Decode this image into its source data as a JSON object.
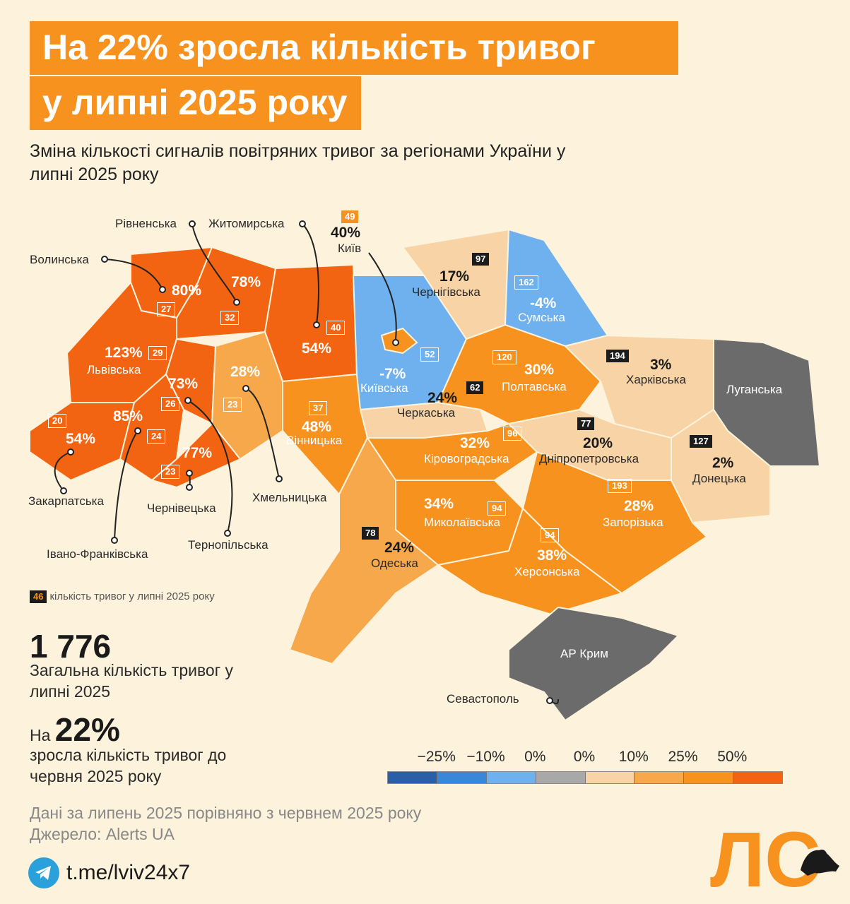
{
  "title": {
    "line1": "На 22% зросла кількість тривог",
    "line2": "у липні 2025 року"
  },
  "subtitle": "Зміна кількості сигналів повітряних тривог за регіонами України у липні 2025 року",
  "colors": {
    "orange_dark": "#f26411",
    "orange": "#f7921e",
    "orange_mid": "#f6a84a",
    "peach": "#f8d3a6",
    "blue_light": "#6fb1ee",
    "blue": "#3a86d8",
    "blue_dark": "#2a5ea8",
    "grey": "#6b6b6b",
    "accent": "#f7921e"
  },
  "regions": [
    {
      "name": "Волинська",
      "pct": "80%",
      "count": "27"
    },
    {
      "name": "Рівненська",
      "pct": "78%",
      "count": "32"
    },
    {
      "name": "Житомирська",
      "pct": "54%",
      "count": "40"
    },
    {
      "name": "Київ",
      "pct": "40%",
      "count": "49"
    },
    {
      "name": "Чернігівська",
      "pct": "17%",
      "count": "97"
    },
    {
      "name": "Сумська",
      "pct": "-4%",
      "count": "162"
    },
    {
      "name": "Львівська",
      "pct": "123%",
      "count": "29"
    },
    {
      "name": "Київська",
      "pct": "-7%",
      "count": "52"
    },
    {
      "name": "Полтавська",
      "pct": "30%",
      "count": "120"
    },
    {
      "name": "Харківська",
      "pct": "3%",
      "count": "194"
    },
    {
      "name": "Луганська",
      "pct": "",
      "count": ""
    },
    {
      "name": "Закарпатська",
      "pct": "54%",
      "count": "20"
    },
    {
      "name": "Івано-Франківська",
      "pct": "85%",
      "count": "24"
    },
    {
      "name": "Тернопільська",
      "pct": "73%",
      "count": "26"
    },
    {
      "name": "Хмельницька",
      "pct": "28%",
      "count": "23"
    },
    {
      "name": "Чернівецька",
      "pct": "77%",
      "count": "23"
    },
    {
      "name": "Вінницька",
      "pct": "48%",
      "count": "37"
    },
    {
      "name": "Черкаська",
      "pct": "24%",
      "count": "62"
    },
    {
      "name": "Кіровоградська",
      "pct": "32%",
      "count": "96"
    },
    {
      "name": "Дніпропетровська",
      "pct": "20%",
      "count": "77"
    },
    {
      "name": "Донецька",
      "pct": "2%",
      "count": "127"
    },
    {
      "name": "Миколаївська",
      "pct": "34%",
      "count": "94"
    },
    {
      "name": "Запорізька",
      "pct": "28%",
      "count": "193"
    },
    {
      "name": "Одеська",
      "pct": "24%",
      "count": "78"
    },
    {
      "name": "Херсонська",
      "pct": "38%",
      "count": "94"
    },
    {
      "name": "АР Крим",
      "pct": "",
      "count": ""
    },
    {
      "name": "Севастополь",
      "pct": "",
      "count": ""
    }
  ],
  "legend_note": {
    "sample": "46",
    "text": "кількість тривог у липні 2025 року"
  },
  "total": {
    "value": "1 776",
    "label": "Загальна кількість тривог у липні 2025"
  },
  "growth": {
    "prefix": "На",
    "value": "22%",
    "label": "зросла кількість тривог до червня 2025 року"
  },
  "scale": {
    "labels": [
      "−25%",
      "−10%",
      "0%",
      "0%",
      "10%",
      "25%",
      "50%"
    ],
    "colors": [
      "#2a5ea8",
      "#3a86d8",
      "#6fb1ee",
      "#a8a8a8",
      "#f8d3a6",
      "#f6a84a",
      "#f7921e",
      "#f26411"
    ]
  },
  "footer": {
    "line1": "Дані за липень 2025 порівняно з червнем 2025 року",
    "line2": "Джерело: Alerts UA",
    "telegram": "t.me/lviv24x7"
  },
  "logo": "ЛС"
}
